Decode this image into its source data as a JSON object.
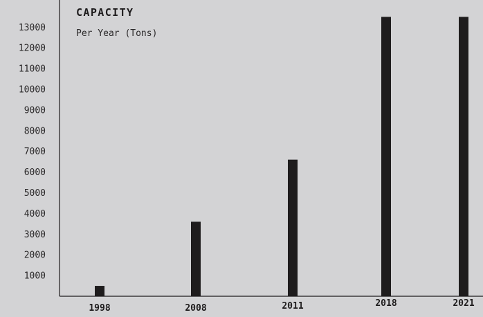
{
  "colors": {
    "background": "#d3d3d5",
    "bar": "#1e1c1d",
    "axis": "#1e1c1d",
    "text": "#2a2829"
  },
  "chart_data": {
    "type": "bar",
    "title": "CAPACITY",
    "subtitle": "Per Year (Tons)",
    "xlabel": "",
    "ylabel": "",
    "categories": [
      "1998",
      "2008",
      "2011",
      "2018",
      "2021"
    ],
    "values": [
      500,
      3600,
      6600,
      13500,
      13500
    ],
    "y_ticks": [
      1000,
      2000,
      3000,
      4000,
      5000,
      6000,
      7000,
      8000,
      9000,
      10000,
      11000,
      12000,
      13000
    ],
    "ylim": [
      0,
      14000
    ],
    "grid": false,
    "legend": "none"
  }
}
